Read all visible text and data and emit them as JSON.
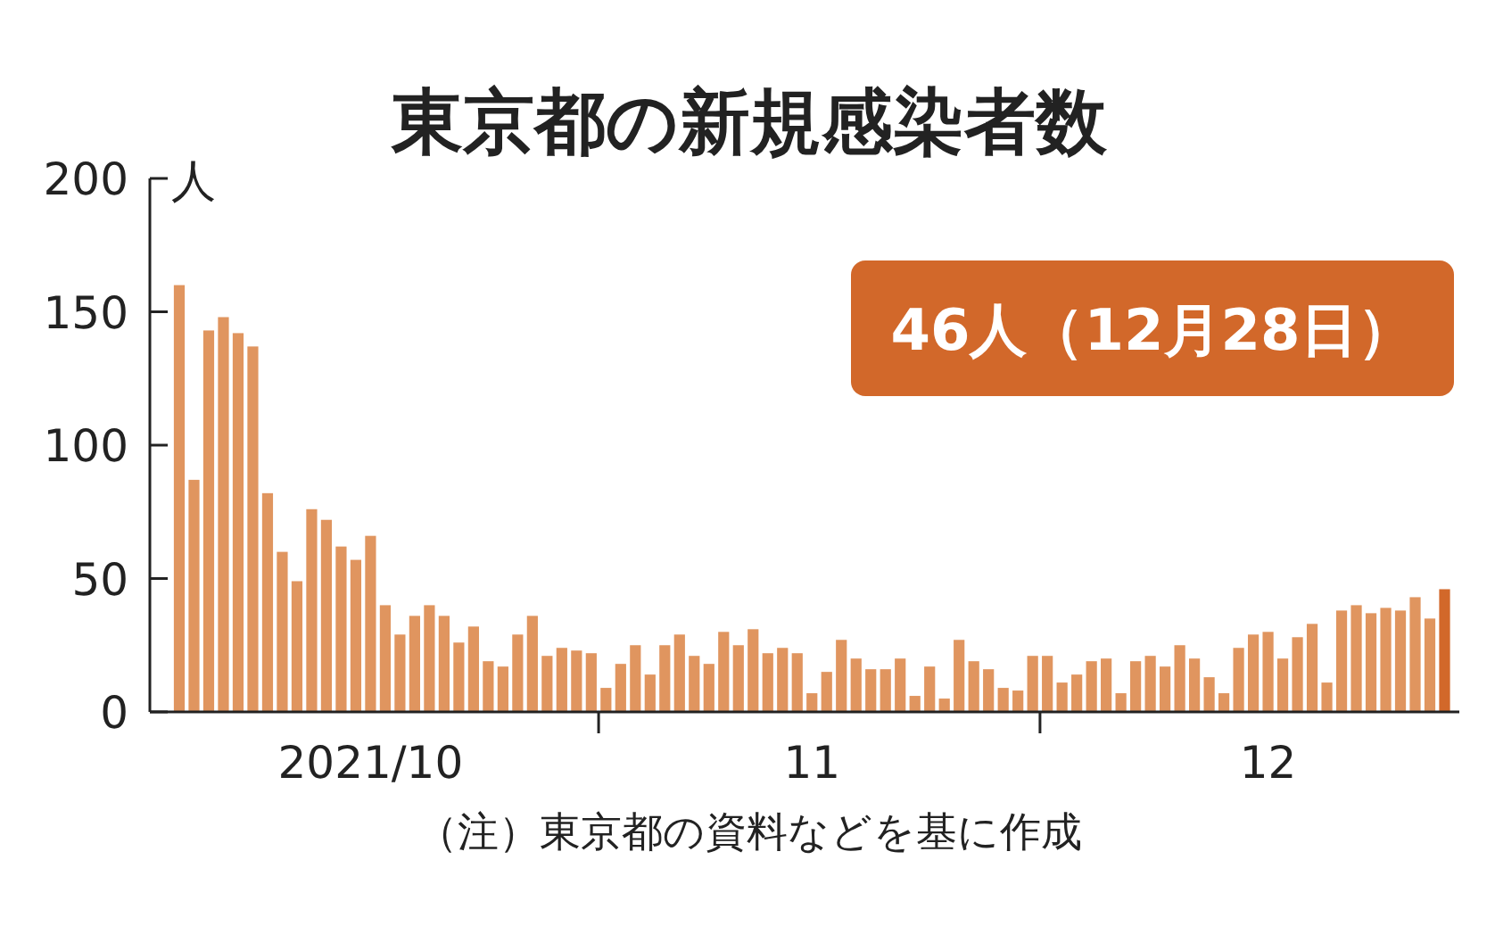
{
  "chart_data": {
    "type": "bar",
    "title": "東京都の新規感染者数",
    "ylabel": "人",
    "x": [
      "2021-10-03",
      "2021-10-04",
      "2021-10-05",
      "2021-10-06",
      "2021-10-07",
      "2021-10-08",
      "2021-10-09",
      "2021-10-10",
      "2021-10-11",
      "2021-10-12",
      "2021-10-13",
      "2021-10-14",
      "2021-10-15",
      "2021-10-16",
      "2021-10-17",
      "2021-10-18",
      "2021-10-19",
      "2021-10-20",
      "2021-10-21",
      "2021-10-22",
      "2021-10-23",
      "2021-10-24",
      "2021-10-25",
      "2021-10-26",
      "2021-10-27",
      "2021-10-28",
      "2021-10-29",
      "2021-10-30",
      "2021-10-31",
      "2021-11-01",
      "2021-11-02",
      "2021-11-03",
      "2021-11-04",
      "2021-11-05",
      "2021-11-06",
      "2021-11-07",
      "2021-11-08",
      "2021-11-09",
      "2021-11-10",
      "2021-11-11",
      "2021-11-12",
      "2021-11-13",
      "2021-11-14",
      "2021-11-15",
      "2021-11-16",
      "2021-11-17",
      "2021-11-18",
      "2021-11-19",
      "2021-11-20",
      "2021-11-21",
      "2021-11-22",
      "2021-11-23",
      "2021-11-24",
      "2021-11-25",
      "2021-11-26",
      "2021-11-27",
      "2021-11-28",
      "2021-11-29",
      "2021-11-30",
      "2021-12-01",
      "2021-12-02",
      "2021-12-03",
      "2021-12-04",
      "2021-12-05",
      "2021-12-06",
      "2021-12-07",
      "2021-12-08",
      "2021-12-09",
      "2021-12-10",
      "2021-12-11",
      "2021-12-12",
      "2021-12-13",
      "2021-12-14",
      "2021-12-15",
      "2021-12-16",
      "2021-12-17",
      "2021-12-18",
      "2021-12-19",
      "2021-12-20",
      "2021-12-21",
      "2021-12-22",
      "2021-12-23",
      "2021-12-24",
      "2021-12-25",
      "2021-12-26",
      "2021-12-27",
      "2021-12-28"
    ],
    "values": [
      160,
      87,
      143,
      148,
      142,
      137,
      82,
      60,
      49,
      76,
      72,
      62,
      57,
      66,
      40,
      29,
      36,
      40,
      36,
      26,
      32,
      19,
      17,
      29,
      36,
      21,
      24,
      23,
      22,
      9,
      18,
      25,
      14,
      25,
      29,
      21,
      18,
      30,
      25,
      31,
      22,
      24,
      22,
      7,
      15,
      27,
      20,
      16,
      16,
      20,
      6,
      17,
      5,
      27,
      19,
      16,
      9,
      8,
      21,
      21,
      11,
      14,
      19,
      20,
      7,
      19,
      21,
      17,
      25,
      20,
      13,
      7,
      24,
      29,
      30,
      20,
      28,
      33,
      11,
      38,
      40,
      37,
      39,
      38,
      43,
      35,
      46
    ],
    "colors": [
      "#e0955f",
      "#e0955f",
      "#e0955f",
      "#e0955f",
      "#e0955f",
      "#e0955f",
      "#e0955f",
      "#e0955f",
      "#e0955f",
      "#e0955f",
      "#e0955f",
      "#e0955f",
      "#e0955f",
      "#e0955f",
      "#e0955f",
      "#e0955f",
      "#e0955f",
      "#e0955f",
      "#e0955f",
      "#e0955f",
      "#e0955f",
      "#e0955f",
      "#e0955f",
      "#e0955f",
      "#e0955f",
      "#e0955f",
      "#e0955f",
      "#e0955f",
      "#e0955f",
      "#e0955f",
      "#e0955f",
      "#e0955f",
      "#e0955f",
      "#e0955f",
      "#e0955f",
      "#e0955f",
      "#e0955f",
      "#e0955f",
      "#e0955f",
      "#e0955f",
      "#e0955f",
      "#e0955f",
      "#e0955f",
      "#e0955f",
      "#e0955f",
      "#e0955f",
      "#e0955f",
      "#e0955f",
      "#e0955f",
      "#e0955f",
      "#e0955f",
      "#e0955f",
      "#e0955f",
      "#e0955f",
      "#e0955f",
      "#e0955f",
      "#e0955f",
      "#e0955f",
      "#e0955f",
      "#e0955f",
      "#e0955f",
      "#e0955f",
      "#e0955f",
      "#e0955f",
      "#e0955f",
      "#e0955f",
      "#e0955f",
      "#e0955f",
      "#e0955f",
      "#e0955f",
      "#e0955f",
      "#e0955f",
      "#e0955f",
      "#e0955f",
      "#e0955f",
      "#e0955f",
      "#e0955f",
      "#e0955f",
      "#e0955f",
      "#e0955f",
      "#e0955f",
      "#e0955f",
      "#e0955f",
      "#e0955f",
      "#e0955f",
      "#e0955f",
      "#d2682a"
    ],
    "xlim": [
      "2021-10-01",
      "2021-12-29"
    ],
    "xticks": [
      {
        "value": "2021-10-16",
        "label": "2021/10"
      },
      {
        "value": "2021-10-31T12:00",
        "label": null
      },
      {
        "value": "2021-11-15",
        "label": "11"
      },
      {
        "value": "2021-11-30T12:00",
        "label": null
      },
      {
        "value": "2021-12-16",
        "label": "12"
      }
    ],
    "ylim": [
      0,
      200
    ],
    "yticks": [
      0,
      50,
      100,
      150,
      200
    ],
    "annotations": [
      "46人（12月28日）",
      "（注）東京都の資料などを基に作成"
    ]
  }
}
